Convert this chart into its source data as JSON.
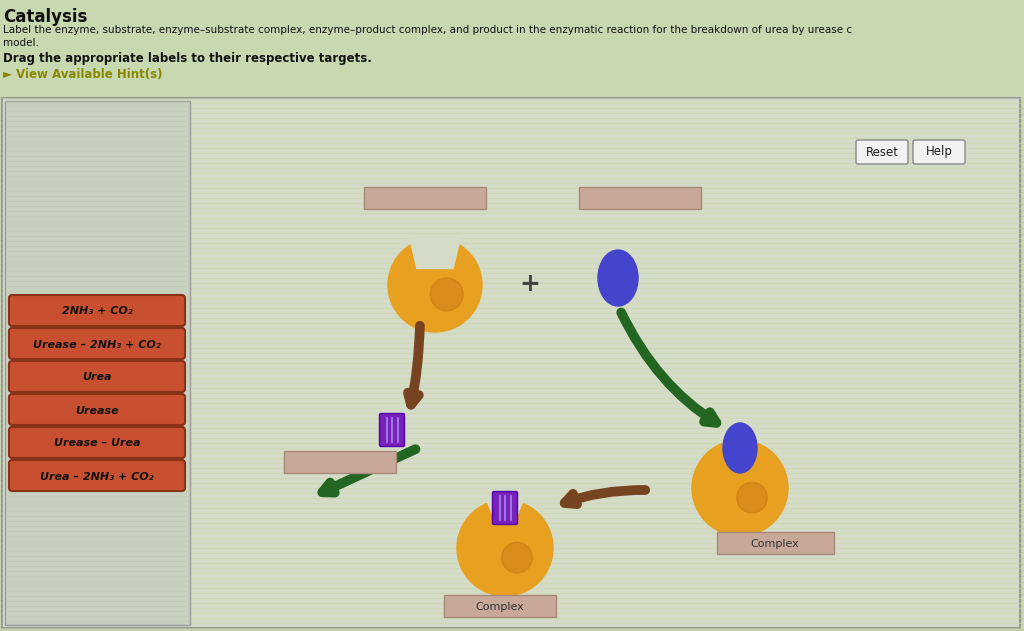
{
  "title": "Catalysis",
  "subtitle_line1": "Label the enzyme, substrate, enzyme–substrate complex, enzyme–product complex, and product in the enzymatic reaction for the breakdown of urea by urease c",
  "subtitle_line2": "model.",
  "instruction": "Drag the appropriate labels to their respective targets.",
  "hint_text": "► View Available Hint(s)",
  "bg_color": "#c8d8b0",
  "panel_bg": "#d0d8c8",
  "left_panel_bg": "#c8cfc0",
  "label_bg": "#c85030",
  "label_text_color": "#111111",
  "label_border": "#883318",
  "labels": [
    "2NH₃ + CO₂",
    "Urease – 2NH₃ + CO₂",
    "Urea",
    "Urease",
    "Urease – Urea",
    "Urea – 2NH₃ + CO₂"
  ],
  "reset_btn": "Reset",
  "help_btn": "Help",
  "enzyme_color": "#e8a020",
  "enzyme_shade": "#c07010",
  "substrate_color": "#4444cc",
  "product_color": "#7722bb",
  "label_box_color": "#c8a898",
  "label_box_edge": "#a88878",
  "arrow_green": "#226622",
  "arrow_brown": "#774422",
  "complex_text": "Complex",
  "stripe_color": "#b8cc98",
  "stripe_color2": "#c8d8a8"
}
